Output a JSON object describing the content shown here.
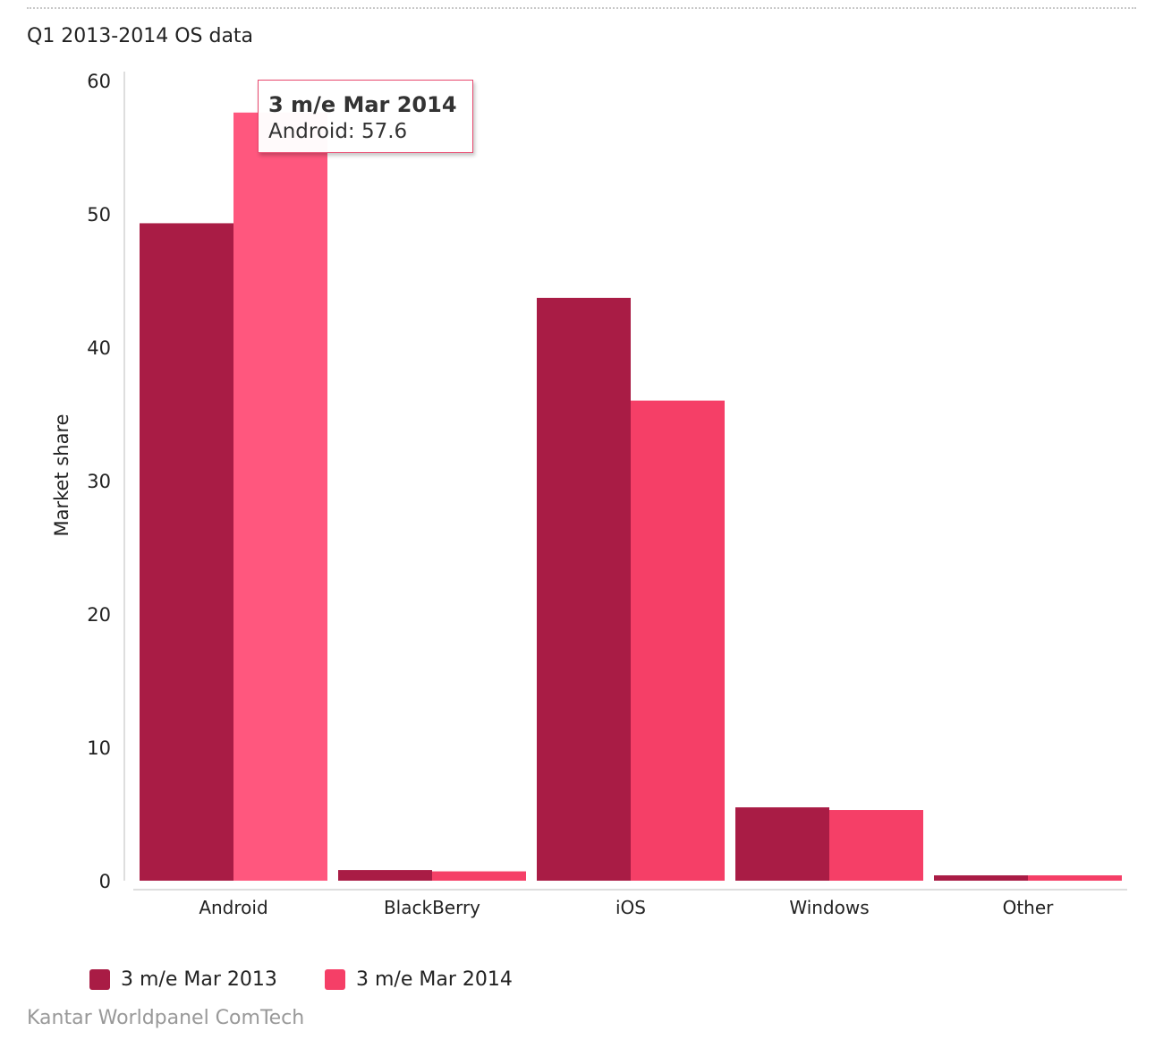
{
  "chart_data": {
    "type": "bar",
    "title": "Q1 2013-2014 OS data",
    "ylabel": "Market share",
    "xlabel": "",
    "categories": [
      "Android",
      "BlackBerry",
      "iOS",
      "Windows",
      "Other"
    ],
    "series": [
      {
        "name": "3 m/e Mar 2013",
        "values": [
          49.3,
          0.8,
          43.7,
          5.5,
          0.4
        ],
        "color": "#a91c45"
      },
      {
        "name": "3 m/e Mar 2014",
        "values": [
          57.6,
          0.7,
          36.0,
          5.3,
          0.4
        ],
        "color": "#f53f67"
      }
    ],
    "ylim": [
      0,
      60
    ],
    "yticks": [
      0,
      10,
      20,
      30,
      40,
      50,
      60
    ],
    "grid": false,
    "legend_position": "bottom-left",
    "highlight": {
      "series": 1,
      "category": 0,
      "color": "#ff577e"
    },
    "tooltip": {
      "title": "3 m/e Mar 2014",
      "text": "Android: 57.6"
    },
    "source": "Kantar Worldpanel ComTech"
  }
}
